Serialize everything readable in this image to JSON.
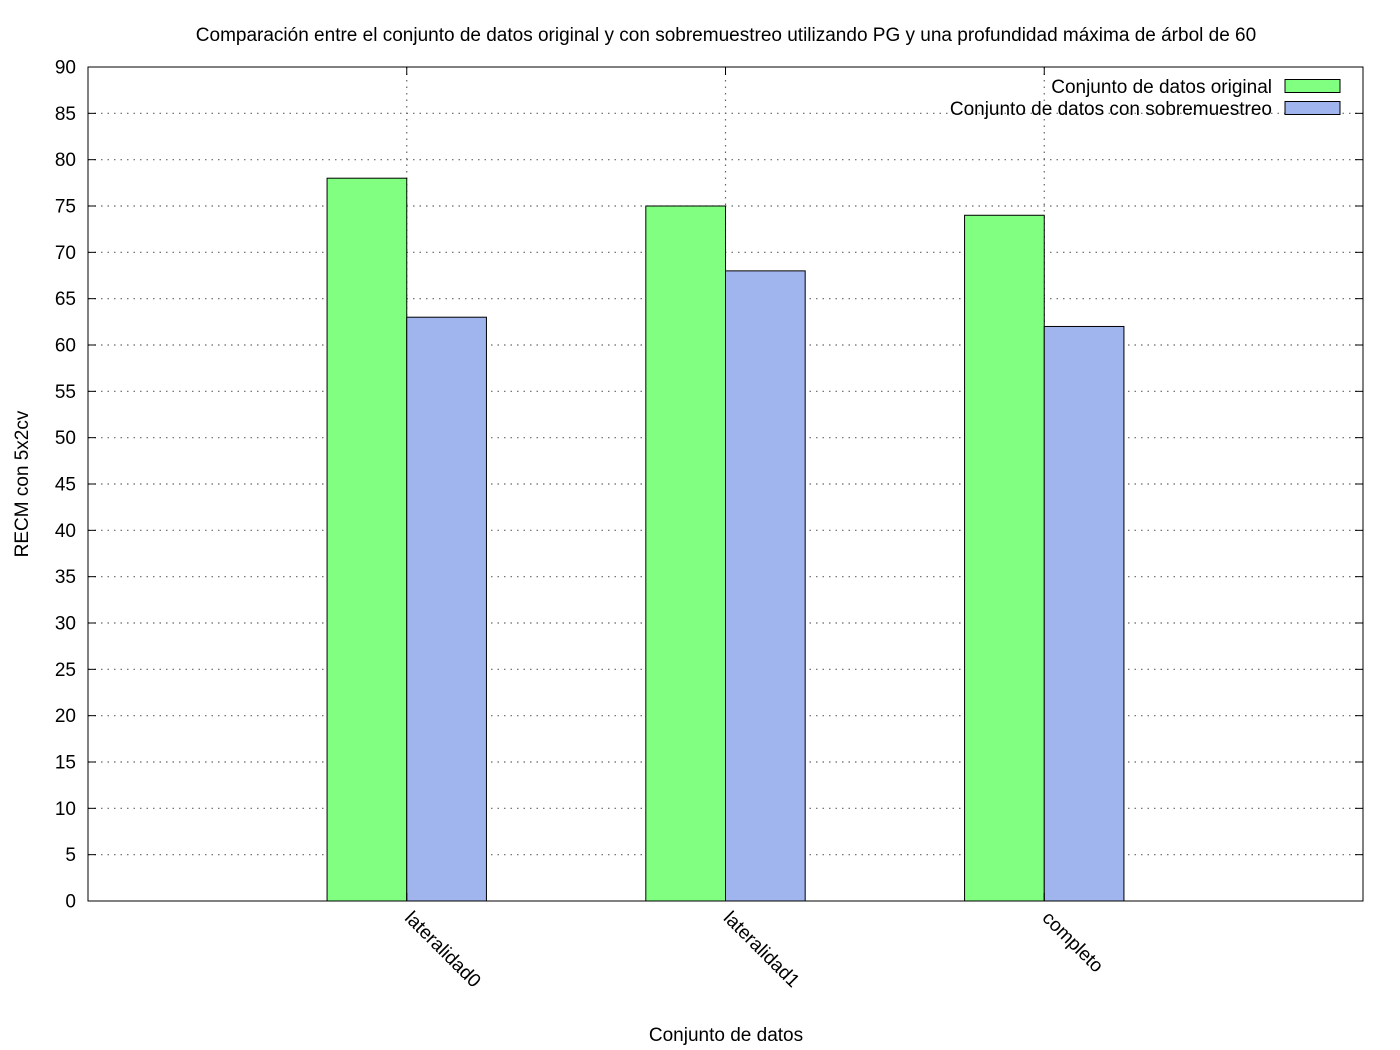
{
  "chart_data": {
    "type": "bar",
    "title": "Comparación entre el conjunto de datos original y con sobremuestreo utilizando PG y una profundidad máxima de árbol de 60",
    "xlabel": "Conjunto de datos",
    "ylabel": "RECM con 5x2cv",
    "ylim": [
      0,
      90
    ],
    "ytick_step": 5,
    "grid": true,
    "legend_position": "top-right",
    "categories": [
      "lateralidad0",
      "lateralidad1",
      "completo"
    ],
    "series": [
      {
        "name": "Conjunto de datos original",
        "color": "#80ff80",
        "values": [
          78,
          75,
          74
        ]
      },
      {
        "name": "Conjunto de datos con sobremuestreo",
        "color": "#a0b4ee",
        "values": [
          63,
          68,
          62
        ]
      }
    ]
  }
}
